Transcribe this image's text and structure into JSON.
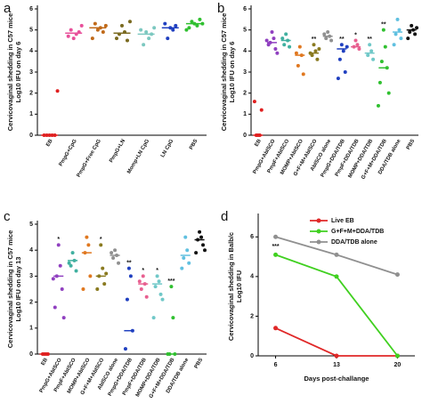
{
  "chart_data": [
    {
      "type": "dot",
      "label": "a",
      "ylabel": [
        "Cervicovaginal shedding in C57 mice",
        "Log10 IFU on day 6"
      ],
      "ylim": [
        0,
        6
      ],
      "yticks": [
        0,
        1,
        2,
        3,
        4,
        5,
        6
      ],
      "categories": [
        "EB",
        "PmpG+CpG",
        "PmpG+Free CpG",
        "PmpG+LN",
        "Momp+LN CpG",
        "LN CpG",
        "PBS"
      ],
      "colors": [
        "#e02020",
        "#e8509a",
        "#c06a1a",
        "#7a6a20",
        "#7cc8c0",
        "#2040c0",
        "#30c030"
      ],
      "points": [
        [
          0,
          0,
          0,
          0,
          0,
          2.1
        ],
        [
          4.6,
          4.8,
          5.0,
          4.9,
          4.7,
          5.2
        ],
        [
          5.0,
          5.1,
          5.3,
          4.9,
          4.6,
          5.2
        ],
        [
          5.2,
          4.9,
          4.8,
          4.5,
          4.6,
          5.4
        ],
        [
          4.9,
          4.6,
          4.3,
          4.8,
          5.0,
          5.1
        ],
        [
          5.1,
          5.0,
          4.6,
          5.2,
          5.3
        ],
        [
          5.3,
          5.2,
          5.4,
          5.5,
          5.1,
          5.3,
          5.0
        ]
      ],
      "means": [
        0,
        4.85,
        5.1,
        4.85,
        4.8,
        5.1,
        5.3
      ],
      "annotations": [
        null,
        null,
        null,
        null,
        null,
        null,
        null
      ]
    },
    {
      "type": "dot",
      "label": "b",
      "ylabel": [
        "Cervicovaginal shedding in C57 mice",
        "Log10 IFU on day 6"
      ],
      "ylim": [
        0,
        6
      ],
      "yticks": [
        0,
        1,
        2,
        3,
        4,
        5,
        6
      ],
      "categories": [
        "EB",
        "PmpG+AbISCO",
        "PmpF+AbISCO",
        "MOMP+AbISCO",
        "G+F+M+AbISCO",
        "AbISCO alone",
        "PmpG+DDA/TDB",
        "PmpF+DDA/TDB",
        "MOMP+DDA/TDB",
        "G+F+M+DDA/TDB",
        "DDA/TDB alone",
        "PBS"
      ],
      "colors": [
        "#e02020",
        "#9040c0",
        "#40b0a0",
        "#e07820",
        "#8a7a20",
        "#909090",
        "#2040c0",
        "#e86090",
        "#70c8c8",
        "#30c030",
        "#60c0e0",
        "#111111"
      ],
      "points": [
        [
          0,
          0,
          0,
          1.2,
          1.6
        ],
        [
          4.9,
          4.6,
          4.4,
          4.1,
          4.3,
          3.9,
          4.5
        ],
        [
          4.8,
          4.5,
          4.3,
          4.2,
          4.6
        ],
        [
          4.2,
          3.8,
          3.3,
          2.9,
          3.9
        ],
        [
          4.3,
          4.0,
          3.8,
          3.6,
          3.9,
          4.1
        ],
        [
          4.9,
          4.7,
          4.6,
          4.5,
          4.8
        ],
        [
          4.3,
          4.0,
          3.6,
          3.0,
          2.7,
          4.2
        ],
        [
          4.5,
          4.3,
          4.2,
          4.1
        ],
        [
          4.3,
          4.0,
          3.8,
          3.6
        ],
        [
          5.0,
          4.2,
          3.5,
          3.2,
          2.5,
          2.0,
          1.4
        ],
        [
          5.5,
          5.0,
          4.8,
          4.6,
          4.3
        ],
        [
          5.2,
          5.0,
          4.9,
          4.8,
          4.6,
          5.1
        ]
      ],
      "means": [
        0,
        4.4,
        4.5,
        3.8,
        3.9,
        4.7,
        4.1,
        4.2,
        3.9,
        3.2,
        4.9,
        5.0
      ],
      "annotations": [
        null,
        null,
        null,
        null,
        "**",
        null,
        "**",
        "*",
        "**",
        "**",
        null,
        null
      ]
    },
    {
      "type": "dot",
      "label": "c",
      "ylabel": [
        "Cervicovaginal shedding in C57 mice",
        "Log10 IFU on day 13"
      ],
      "ylim": [
        0,
        5
      ],
      "yticks": [
        0,
        1,
        2,
        3,
        4,
        5
      ],
      "categories": [
        "EB",
        "PmpG+AbISCO",
        "PmpF+AbISCO",
        "MOMP+AbISCO",
        "G+F+M+AbISCO",
        "AbISCO alone",
        "PmpG+DDA/TDB",
        "PmpF+DDA/TDB",
        "MOMP+DDA/TDB",
        "G+F+M+DDA/TDB",
        "DDA/TDB alone",
        "PBS"
      ],
      "colors": [
        "#e02020",
        "#9040c0",
        "#40b0a0",
        "#e07820",
        "#8a7a20",
        "#909090",
        "#2040c0",
        "#e86090",
        "#70c8c8",
        "#30c030",
        "#60c0e0",
        "#111111"
      ],
      "points": [
        [
          0,
          0,
          0,
          0
        ],
        [
          4.2,
          3.4,
          3.0,
          2.5,
          1.8,
          1.4,
          2.9
        ],
        [
          3.9,
          3.6,
          3.4,
          3.2,
          3.5
        ],
        [
          4.5,
          4.2,
          3.9,
          3.0,
          2.5
        ],
        [
          4.2,
          3.3,
          3.0,
          2.7,
          2.5,
          3.1
        ],
        [
          4.0,
          3.8,
          3.7,
          3.5,
          3.9
        ],
        [
          3.3,
          3.0,
          2.1,
          0.9,
          0.2
        ],
        [
          3.0,
          2.7,
          2.5,
          2.2,
          2.8
        ],
        [
          3.0,
          2.8,
          2.6,
          2.3,
          1.4,
          2.1
        ],
        [
          2.6,
          1.4,
          0,
          0,
          0
        ],
        [
          4.5,
          4.0,
          3.7,
          3.5,
          3.3
        ],
        [
          4.7,
          4.5,
          4.4,
          4.2,
          3.9,
          4.0
        ]
      ],
      "means": [
        0,
        3.0,
        3.6,
        3.9,
        3.0,
        3.8,
        0.9,
        2.7,
        2.7,
        0,
        3.8,
        4.4
      ],
      "annotations": [
        null,
        "*",
        null,
        null,
        "*",
        null,
        "**",
        "*",
        "*",
        "***",
        null,
        null
      ]
    },
    {
      "type": "line",
      "label": "d",
      "ylabel": [
        "Cervicovaginal shedding in Balb/c",
        "Log10 IFU"
      ],
      "xlabel": "Days post-challange",
      "x": [
        6,
        13,
        20
      ],
      "xlim": [
        4,
        22
      ],
      "xticks": [
        6,
        13,
        20
      ],
      "ylim": [
        0,
        7
      ],
      "yticks": [
        0,
        2,
        4,
        6
      ],
      "legend": "upper right",
      "annotation": "***",
      "series": [
        {
          "name": "Live EB",
          "color": "#e02828",
          "values": [
            1.4,
            0,
            0
          ]
        },
        {
          "name": "G+F+M+DDA/TDB",
          "color": "#40d020",
          "values": [
            5.1,
            4.0,
            0
          ]
        },
        {
          "name": "DDA/TDB alone",
          "color": "#909090",
          "values": [
            6.0,
            5.1,
            4.1
          ]
        }
      ]
    }
  ]
}
